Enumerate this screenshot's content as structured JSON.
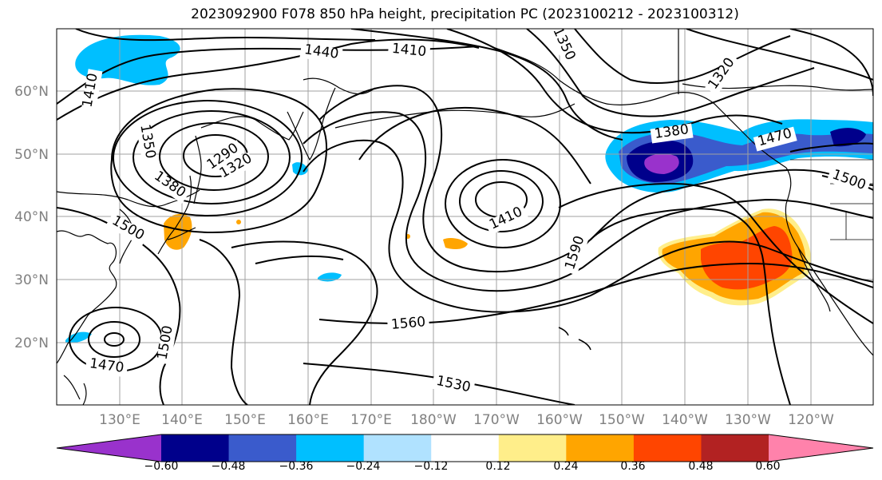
{
  "title": "2023092900 F078 850 hPa height, precipitation PC (2023100212 - 2023100312)",
  "lat_labels": [
    "60°N",
    "50°N",
    "40°N",
    "30°N",
    "20°N"
  ],
  "lon_labels": [
    "130°E",
    "140°E",
    "150°E",
    "160°E",
    "170°E",
    "180°W",
    "170°W",
    "160°W",
    "150°W",
    "140°W",
    "130°W",
    "120°W"
  ],
  "contour_labels": [
    "1440",
    "1410",
    "1350",
    "1320",
    "1410",
    "1350",
    "1290",
    "1320",
    "1380",
    "1500",
    "1380",
    "1470",
    "1500",
    "1410",
    "1590",
    "1560",
    "1530",
    "1500",
    "1470"
  ],
  "colorbar": {
    "ticks": [
      "−0.60",
      "−0.48",
      "−0.36",
      "−0.24",
      "−0.12",
      "0.12",
      "0.24",
      "0.36",
      "0.48",
      "0.60"
    ],
    "colors": [
      "#9932cc",
      "#00008b",
      "#3a5bcc",
      "#00bfff",
      "#b0e2ff",
      "#ffffff",
      "#ffee8a",
      "#ffa500",
      "#ff4500",
      "#b22222",
      "#ff82ab"
    ]
  }
}
